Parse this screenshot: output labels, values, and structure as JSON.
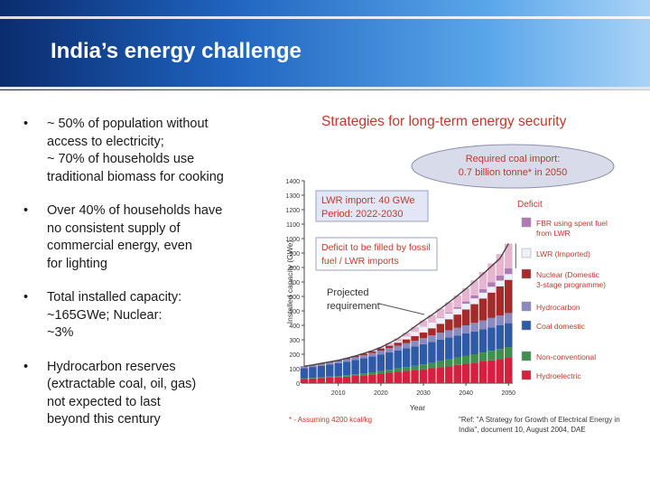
{
  "slide": {
    "title": "India’s energy challenge",
    "bullets": [
      "~ 50% of population without\naccess to electricity;\n~ 70% of households use\ntraditional biomass for cooking",
      "Over 40% of households  have\nno consistent supply of\ncommercial energy,          even\nfor lighting",
      "Total installed capacity:\n~165GWe;                 Nuclear:\n~3%",
      "Hydrocarbon reserves\n(extractable coal, oil, gas)\nnot expected to last\nbeyond this century"
    ]
  },
  "figure": {
    "title": "Strategies for long-term energy security",
    "callouts": {
      "coal_import_1": "Required coal import:",
      "coal_import_2": "0.7 billion tonne* in 2050",
      "lwr_1": "LWR import: 40 GWe",
      "lwr_2": "Period: 2022-2030",
      "deficit_1": "Deficit to be filled by fossil",
      "deficit_2": "fuel / LWR  imports",
      "projected_1": "Projected",
      "projected_2": "requirement",
      "deficit_label": "Deficit"
    },
    "footnote": "* - Assuming 4200 kcal/kg",
    "reference_1": "\"Ref: \"A Strategy for Growth of Electrical Energy in",
    "reference_2": "India\", document 10, August 2004, DAE"
  },
  "chart_data": {
    "type": "bar",
    "stacked": true,
    "title": "",
    "xlabel": "Year",
    "ylabel": "Installed capacity (GWe)",
    "ylim": [
      0,
      1400
    ],
    "yticks": [
      "0",
      "100",
      "200",
      "300",
      "400",
      "500",
      "600",
      "700",
      "800",
      "900",
      "1000",
      "1100",
      "1200",
      "1300",
      "1400"
    ],
    "xticks": [
      "2010",
      "2020",
      "2030",
      "2040",
      "2050"
    ],
    "x": [
      2002,
      2004,
      2006,
      2008,
      2010,
      2012,
      2014,
      2016,
      2018,
      2020,
      2022,
      2024,
      2026,
      2028,
      2030,
      2032,
      2034,
      2036,
      2038,
      2040,
      2042,
      2044,
      2046,
      2048,
      2050
    ],
    "series": [
      {
        "name": "Hydroelectric",
        "color": "#d62040",
        "values": [
          30,
          32,
          35,
          38,
          40,
          45,
          50,
          55,
          60,
          66,
          72,
          78,
          84,
          90,
          96,
          103,
          110,
          118,
          126,
          134,
          142,
          150,
          158,
          166,
          175
        ]
      },
      {
        "name": "Non-conventional",
        "color": "#3f8f4f",
        "values": [
          4,
          5,
          6,
          7,
          8,
          9,
          11,
          13,
          15,
          18,
          21,
          24,
          27,
          30,
          34,
          38,
          42,
          46,
          50,
          54,
          58,
          62,
          66,
          70,
          75
        ]
      },
      {
        "name": "Coal domestic",
        "color": "#2f5aa8",
        "values": [
          70,
          75,
          80,
          85,
          90,
          95,
          100,
          105,
          110,
          115,
          120,
          125,
          130,
          135,
          140,
          145,
          150,
          152,
          154,
          156,
          158,
          160,
          162,
          164,
          165
        ]
      },
      {
        "name": "Hydrocarbon",
        "color": "#8a8ac0",
        "values": [
          10,
          11,
          12,
          13,
          15,
          17,
          19,
          21,
          23,
          26,
          29,
          32,
          35,
          38,
          41,
          44,
          47,
          50,
          53,
          56,
          59,
          62,
          65,
          68,
          70
        ]
      },
      {
        "name": "Nuclear (Domestic 3-stage programme)",
        "color": "#a52a2a",
        "values": [
          3,
          3,
          4,
          4,
          5,
          6,
          8,
          10,
          12,
          15,
          18,
          22,
          27,
          33,
          40,
          50,
          62,
          76,
          92,
          110,
          130,
          152,
          176,
          202,
          230
        ]
      },
      {
        "name": "LWR (Imported)",
        "color": "#eef0fa",
        "values": [
          0,
          0,
          0,
          0,
          0,
          0,
          0,
          0,
          0,
          0,
          5,
          10,
          20,
          30,
          40,
          40,
          40,
          40,
          40,
          40,
          40,
          40,
          40,
          40,
          40
        ]
      },
      {
        "name": "FBR using spent fuel from LWR",
        "color": "#b07ab5",
        "values": [
          0,
          0,
          0,
          0,
          0,
          0,
          0,
          0,
          0,
          0,
          0,
          0,
          0,
          0,
          0,
          0,
          2,
          5,
          10,
          15,
          20,
          25,
          30,
          35,
          40
        ]
      },
      {
        "name": "Deficit",
        "color": "#e7b5cf",
        "values": [
          0,
          0,
          0,
          0,
          0,
          0,
          0,
          2,
          5,
          8,
          12,
          18,
          25,
          33,
          42,
          52,
          62,
          72,
          82,
          92,
          104,
          118,
          132,
          148,
          170
        ]
      }
    ],
    "projected_requirement": [
      117,
      126,
      137,
      147,
      158,
      172,
      188,
      206,
      225,
      248,
      277,
      309,
      348,
      392,
      433,
      472,
      515,
      559,
      605,
      653,
      703,
      755,
      809,
      863,
      965
    ],
    "legend": [
      {
        "label": "Deficit",
        "color": "#e7b5cf"
      },
      {
        "label": "FBR using spent fuel from LWR",
        "color": "#b07ab5"
      },
      {
        "label": "LWR (Imported)",
        "color": "#eef0fa"
      },
      {
        "label": "Nuclear (Domestic 3-stage programme)",
        "color": "#a52a2a"
      },
      {
        "label": "Hydrocarbon",
        "color": "#8a8ac0"
      },
      {
        "label": "Coal domestic",
        "color": "#2f5aa8"
      },
      {
        "label": "Non-conventional",
        "color": "#3f8f4f"
      },
      {
        "label": "Hydroelectric",
        "color": "#d62040"
      }
    ],
    "legend_position": "right",
    "grid": false
  }
}
